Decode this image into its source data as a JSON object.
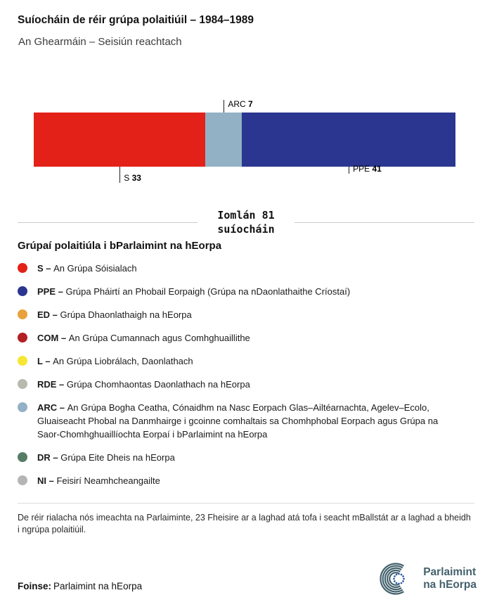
{
  "header": {
    "title": "Suíocháin de réir grúpa polaitiúil – 1984–1989",
    "subtitle": "An Ghearmáin – Seisiún reachtach"
  },
  "chart_data": {
    "type": "bar",
    "subtype": "horizontal-stacked",
    "title": "Suíocháin de réir grúpa polaitiúil – 1984–1989",
    "subtitle": "An Ghearmáin – Seisiún reachtach",
    "total": 81,
    "total_label_line1": "Iomlán 81",
    "total_label_line2": "suíocháin",
    "series": [
      {
        "name": "S",
        "value": 33,
        "color": "#e32119",
        "label_position": "below",
        "label_tier": 2
      },
      {
        "name": "ARC",
        "value": 7,
        "color": "#93b1c4",
        "label_position": "above",
        "label_tier": 1
      },
      {
        "name": "PPE",
        "value": 41,
        "color": "#2b3690",
        "label_position": "below",
        "label_tier": 1
      }
    ]
  },
  "legend": {
    "title": "Grúpaí polaitiúla i bParlaimint na hEorpa",
    "items": [
      {
        "code": "S –",
        "label": "An Grúpa Sóisialach",
        "color": "#e32119"
      },
      {
        "code": "PPE –",
        "label": "Grúpa Pháirtí an Phobail Eorpaigh (Grúpa na nDaonlathaithe Críostaí)",
        "color": "#2b3690"
      },
      {
        "code": "ED –",
        "label": "Grúpa Dhaonlathaigh na hEorpa",
        "color": "#e9a13b"
      },
      {
        "code": "COM –",
        "label": "An Grúpa Cumannach agus Comhghuaillithe",
        "color": "#b22024"
      },
      {
        "code": "L –",
        "label": "An Grúpa Liobrálach, Daonlathach",
        "color": "#f5e733"
      },
      {
        "code": "RDE –",
        "label": "Grúpa Chomhaontas Daonlathach na hEorpa",
        "color": "#b9b9b0"
      },
      {
        "code": "ARC –",
        "label": "An Grúpa Bogha Ceatha, Cónaidhm na Nasc Eorpach Glas–Ailtéarnachta, Agelev–Ecolo, Gluaiseacht Phobal na Danmhairge i gcoinne comhaltais sa Chomhphobal Eorpach agus Grúpa na Saor-Chomhghuaillíochta Eorpaí i bParlaimint na hEorpa",
        "color": "#93b1c4"
      },
      {
        "code": "DR –",
        "label": "Grúpa Eite Dheis na hEorpa",
        "color": "#567c65"
      },
      {
        "code": "NI –",
        "label": "Feisirí Neamhcheangailte",
        "color": "#b5b5b5"
      }
    ]
  },
  "footnote": "De réir rialacha nós imeachta na Parlaiminte, 23 Fheisire ar a laghad atá tofa i seacht mBallstát ar a laghad a bheidh i ngrúpa polaitiúil.",
  "source": {
    "label": "Foinse:",
    "text": "Parlaimint na hEorpa"
  },
  "logo": {
    "line1": "Parlaimint",
    "line2": "na hEorpa",
    "color": "#43616c",
    "stars_color": "#2b5ba8"
  }
}
